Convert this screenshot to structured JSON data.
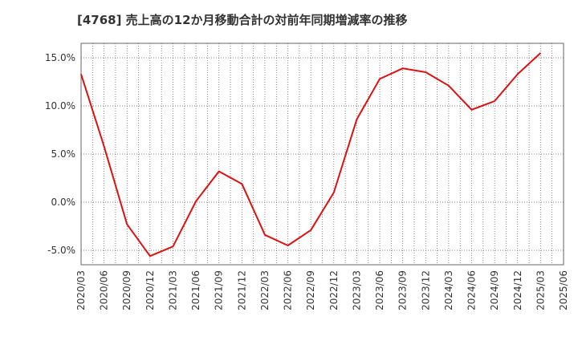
{
  "chart_data": {
    "type": "line",
    "title": "[4768]  売上高の12か月移動合計の対前年同期増減率の推移",
    "xlabel": "",
    "ylabel": "",
    "ylim": [
      -6.5,
      16.5
    ],
    "y_ticks": [
      -5.0,
      0.0,
      5.0,
      10.0,
      15.0
    ],
    "y_tick_labels": [
      "-5.0%",
      "0.0%",
      "5.0%",
      "10.0%",
      "15.0%"
    ],
    "categories": [
      "2020/03",
      "2020/06",
      "2020/09",
      "2020/12",
      "2021/03",
      "2021/06",
      "2021/09",
      "2021/12",
      "2022/03",
      "2022/06",
      "2022/09",
      "2022/12",
      "2023/03",
      "2023/06",
      "2023/09",
      "2023/12",
      "2024/03",
      "2024/06",
      "2024/09",
      "2024/12",
      "2025/03",
      "2025/06"
    ],
    "series": [
      {
        "name": "増減率",
        "color": "#dd1111",
        "values": [
          13.3,
          5.8,
          -2.3,
          -5.6,
          -4.6,
          0.1,
          3.2,
          1.9,
          -3.4,
          -4.5,
          -2.9,
          1.0,
          8.6,
          12.8,
          13.9,
          13.5,
          12.1,
          9.6,
          10.5,
          13.3,
          15.5,
          null
        ]
      }
    ],
    "grid": true,
    "legend": "none"
  }
}
